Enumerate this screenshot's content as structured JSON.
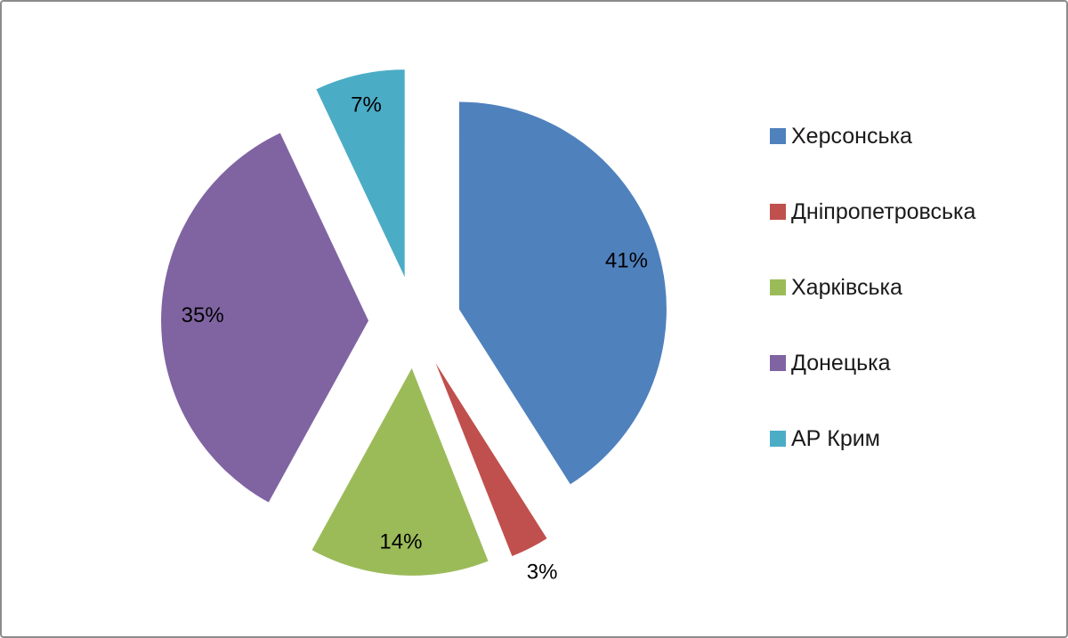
{
  "canvas": {
    "background": "#ffffff",
    "border_color": "#8c8c8c"
  },
  "chart_data": {
    "type": "pie",
    "title": "",
    "categories": [
      "Херсонська",
      "Дніпропетровська",
      "Харківська",
      "Донецька",
      "АР Крим"
    ],
    "values": [
      41,
      3,
      14,
      35,
      7
    ],
    "unit": "%",
    "data_labels": [
      "41%",
      "3%",
      "14%",
      "35%",
      "7%"
    ],
    "colors": [
      "#4F81BD",
      "#C0504D",
      "#9BBB59",
      "#8064A2",
      "#4BACC6"
    ],
    "legend_position": "right",
    "layout": {
      "start_angle_deg": 0,
      "clockwise": true,
      "exploded": true,
      "label_color": "#000000",
      "label_distance": [
        0.84,
        1.13,
        0.84,
        0.8,
        0.85
      ]
    }
  }
}
